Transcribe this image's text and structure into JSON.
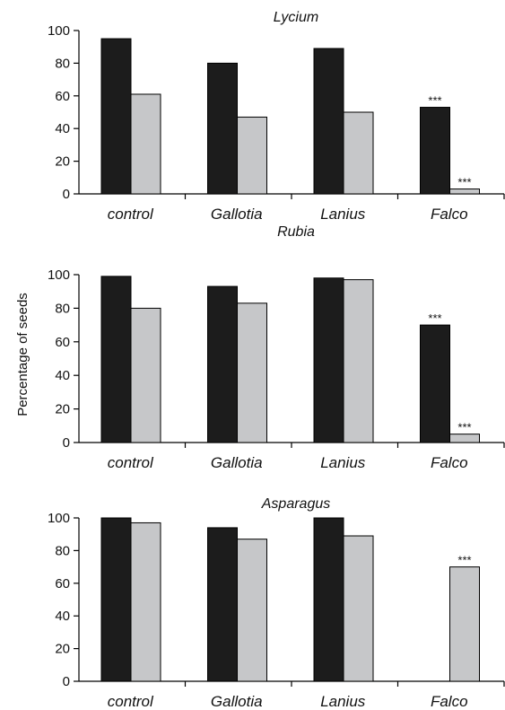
{
  "ylabel": "Percentage of seeds",
  "colors": {
    "series1": "#1c1c1c",
    "series2": "#c6c7c9",
    "bar_stroke": "#000000"
  },
  "chart_data": [
    {
      "type": "bar",
      "title": "Lycium",
      "categories": [
        "control",
        "Gallotia",
        "Lanius",
        "Falco"
      ],
      "ylim": [
        0,
        100
      ],
      "yticks": [
        0,
        20,
        40,
        60,
        80,
        100
      ],
      "series": [
        {
          "values": [
            95,
            80,
            89,
            53
          ]
        },
        {
          "values": [
            61,
            47,
            50,
            3
          ]
        }
      ],
      "annotations": [
        {
          "category": "Falco",
          "series": 0,
          "text": "***"
        },
        {
          "category": "Falco",
          "series": 1,
          "text": "***"
        }
      ]
    },
    {
      "type": "bar",
      "title": "Rubia",
      "categories": [
        "control",
        "Gallotia",
        "Lanius",
        "Falco"
      ],
      "ylim": [
        0,
        100
      ],
      "yticks": [
        0,
        20,
        40,
        60,
        80,
        100
      ],
      "series": [
        {
          "values": [
            99,
            93,
            98,
            70
          ]
        },
        {
          "values": [
            80,
            83,
            97,
            5
          ]
        }
      ],
      "annotations": [
        {
          "category": "Falco",
          "series": 0,
          "text": "***"
        },
        {
          "category": "Falco",
          "series": 1,
          "text": "***"
        }
      ]
    },
    {
      "type": "bar",
      "title": "Asparagus",
      "categories": [
        "control",
        "Gallotia",
        "Lanius",
        "Falco"
      ],
      "ylim": [
        0,
        100
      ],
      "yticks": [
        0,
        20,
        40,
        60,
        80,
        100
      ],
      "series": [
        {
          "values": [
            100,
            94,
            100,
            0
          ]
        },
        {
          "values": [
            97,
            87,
            89,
            70
          ]
        }
      ],
      "annotations": [
        {
          "category": "Falco",
          "series": 1,
          "text": "***"
        }
      ]
    }
  ]
}
